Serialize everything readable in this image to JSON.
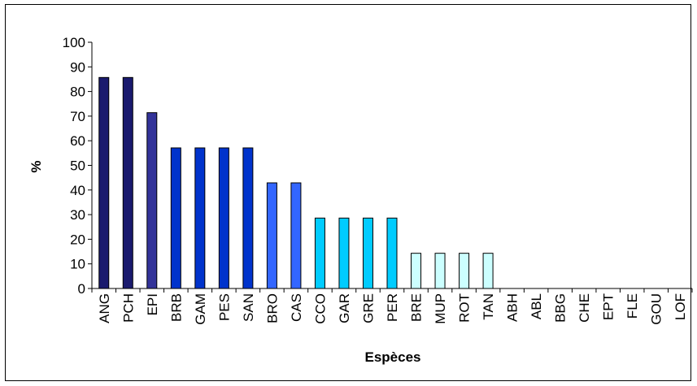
{
  "chart_data": {
    "type": "bar",
    "title": "",
    "xlabel": "Espèces",
    "ylabel": "%",
    "ylim": [
      0,
      100
    ],
    "yticks": [
      0,
      10,
      20,
      30,
      40,
      50,
      60,
      70,
      80,
      90,
      100
    ],
    "grid": false,
    "legend": "none",
    "categories": [
      "ANG",
      "PCH",
      "EPI",
      "BRB",
      "GAM",
      "PES",
      "SAN",
      "BRO",
      "CAS",
      "CCO",
      "GAR",
      "GRE",
      "PER",
      "BRE",
      "MUP",
      "ROT",
      "TAN",
      "ABH",
      "ABL",
      "BBG",
      "CHE",
      "EPT",
      "FLE",
      "GOU",
      "LOF"
    ],
    "values": [
      85.7,
      85.7,
      71.4,
      57.1,
      57.1,
      57.1,
      57.1,
      42.9,
      42.9,
      28.6,
      28.6,
      28.6,
      28.6,
      14.3,
      14.3,
      14.3,
      14.3,
      0,
      0,
      0,
      0,
      0,
      0,
      0,
      0
    ],
    "bar_colors": [
      "#1a1a6e",
      "#1a1a6e",
      "#333399",
      "#0033cc",
      "#0033cc",
      "#0033cc",
      "#0033cc",
      "#3366ff",
      "#3366ff",
      "#00ccff",
      "#00ccff",
      "#00ccff",
      "#00ccff",
      "#ccffff",
      "#ccffff",
      "#ccffff",
      "#ccffff",
      "#ccffff",
      "#ccffff",
      "#ccffff",
      "#ccffff",
      "#ccffff",
      "#ccffff",
      "#ccffff",
      "#ccffff"
    ]
  }
}
